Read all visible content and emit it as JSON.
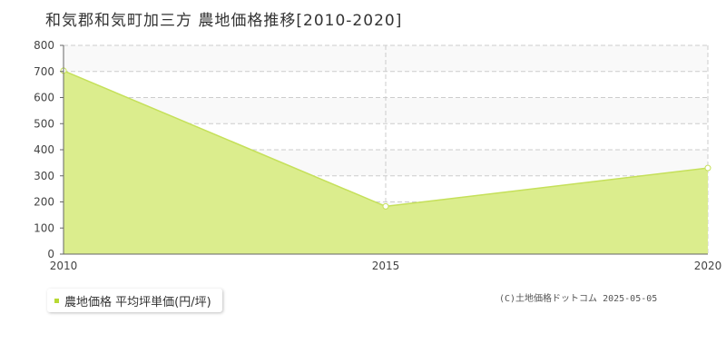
{
  "title": "和気郡和気町加三方 農地価格推移[2010-2020]",
  "legend": {
    "label": "農地価格 平均坪単価(円/坪)"
  },
  "credit": "(C)土地価格ドットコム 2025-05-05",
  "colors": {
    "fill": "#dbed8d",
    "line": "#c5e05a",
    "band": "#f9f9f9",
    "grid": "#cccccc",
    "axis": "#666666",
    "legend_swatch": "#b8d934"
  },
  "chart_data": {
    "type": "area",
    "title": "和気郡和気町加三方 農地価格推移[2010-2020]",
    "xlabel": "",
    "ylabel": "",
    "x": [
      2010,
      2015,
      2020
    ],
    "series": [
      {
        "name": "農地価格 平均坪単価(円/坪)",
        "values": [
          703,
          183,
          330
        ]
      }
    ],
    "xlim": [
      2010,
      2020
    ],
    "ylim": [
      0,
      800
    ],
    "yticks": [
      0,
      100,
      200,
      300,
      400,
      500,
      600,
      700,
      800
    ],
    "xticks": [
      2010,
      2015,
      2020
    ],
    "grid": true,
    "legend_position": "bottom-left"
  }
}
